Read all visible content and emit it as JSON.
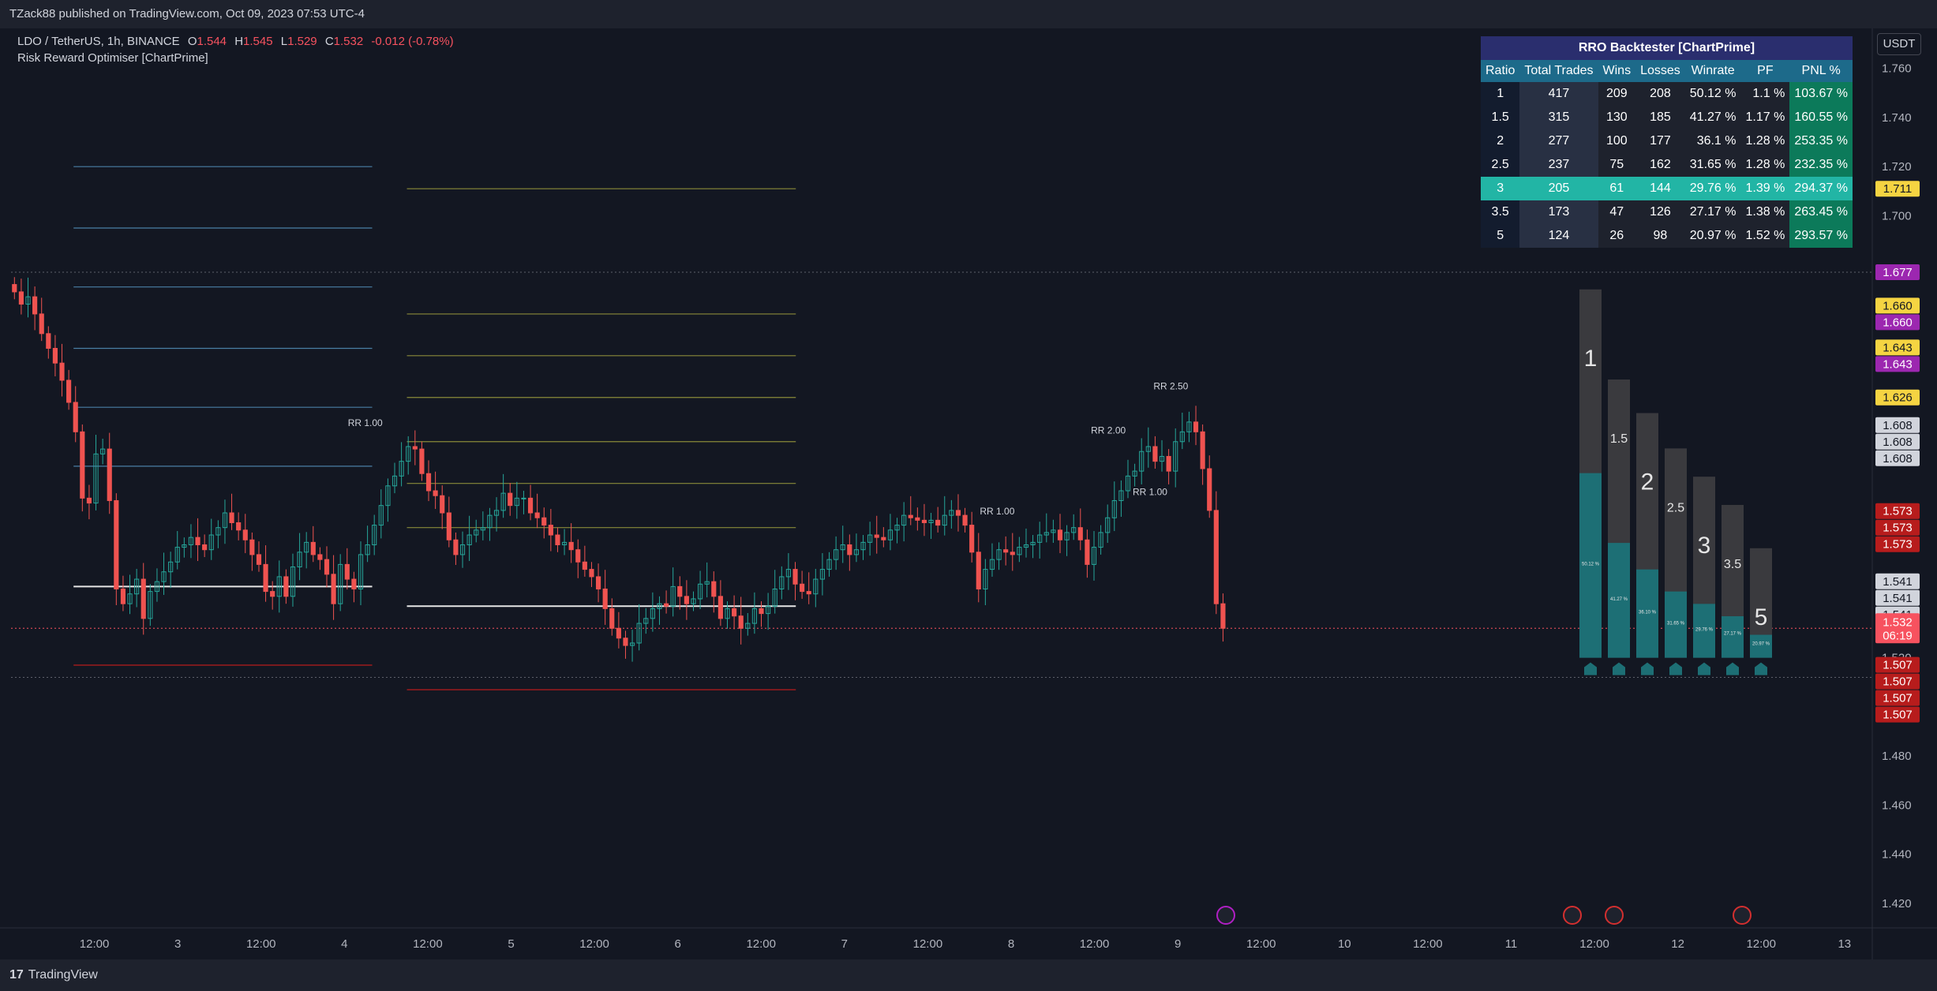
{
  "header": {
    "publish_line": "TZack88 published on TradingView.com, Oct 09, 2023 07:53 UTC-4"
  },
  "legend": {
    "symbol": "LDO / TetherUS, 1h, BINANCE",
    "o_label": "O",
    "o_value": "1.544",
    "h_label": "H",
    "h_value": "1.545",
    "l_label": "L",
    "l_value": "1.529",
    "c_label": "C",
    "c_value": "1.532",
    "change": "-0.012 (-0.78%)",
    "indicator": "Risk Reward Optimiser [ChartPrime]"
  },
  "currency_button": "USDT",
  "footer": {
    "logo_text": "TradingView"
  },
  "colors": {
    "background": "#131722",
    "bull": "#26a69a",
    "bear": "#ef5350",
    "panel": "#1e222d",
    "accent_green": "#0c7a5a",
    "accent_teal": "#22b5a5",
    "table_title": "#2a2e6e",
    "table_header": "#1d6a8a",
    "price_tag_red": "#f23645",
    "price_tag_yellow": "#f5d442",
    "price_tag_purple": "#9c27b0"
  },
  "table": {
    "title": "RRO Backtester [ChartPrime]",
    "columns": [
      "Ratio",
      "Total Trades",
      "Wins",
      "Losses",
      "Winrate",
      "PF",
      "PNL %"
    ],
    "best_row": 4,
    "rows": [
      [
        "1",
        "417",
        "209",
        "208",
        "50.12 %",
        "1.1 %",
        "103.67 %"
      ],
      [
        "1.5",
        "315",
        "130",
        "185",
        "41.27 %",
        "1.17 %",
        "160.55 %"
      ],
      [
        "2",
        "277",
        "100",
        "177",
        "36.1 %",
        "1.28 %",
        "253.35 %"
      ],
      [
        "2.5",
        "237",
        "75",
        "162",
        "31.65 %",
        "1.28 %",
        "232.35 %"
      ],
      [
        "3",
        "205",
        "61",
        "144",
        "29.76 %",
        "1.39 %",
        "294.37 %"
      ],
      [
        "3.5",
        "173",
        "47",
        "126",
        "27.17 %",
        "1.38 %",
        "263.45 %"
      ],
      [
        "5",
        "124",
        "26",
        "98",
        "20.97 %",
        "1.52 %",
        "293.57 %"
      ]
    ]
  },
  "chart_data": {
    "type": "candlestick",
    "symbol": "LDO / TetherUS",
    "interval": "1h",
    "ylim": [
      1.41,
      1.775
    ],
    "y_ticks": [
      1.42,
      1.44,
      1.46,
      1.48,
      1.5,
      1.52,
      1.54,
      1.56,
      1.58,
      1.6,
      1.62,
      1.64,
      1.66,
      1.68,
      1.7,
      1.72,
      1.74,
      1.76
    ],
    "y_tick_labels": [
      "1.420",
      "1.440",
      "1.460",
      "1.480",
      "",
      "1.520",
      "",
      "",
      "",
      "1.600",
      "",
      "",
      "",
      "",
      "1.700",
      "1.720",
      "1.740",
      "1.760"
    ],
    "x_labels": [
      "12:00",
      "3",
      "12:00",
      "4",
      "12:00",
      "5",
      "12:00",
      "6",
      "12:00",
      "7",
      "12:00",
      "8",
      "12:00",
      "9",
      "12:00",
      "10",
      "12:00",
      "11",
      "12:00",
      "12",
      "12:00",
      "13"
    ],
    "x_label_hours": [
      12,
      24,
      36,
      48,
      60,
      72,
      84,
      96,
      108,
      120,
      132,
      144,
      156,
      168,
      180,
      192,
      204,
      216,
      228,
      240,
      252,
      264
    ],
    "x_range_hours": [
      0,
      268
    ],
    "candles_start_hour": 0,
    "candles_end_hour": 175,
    "closes": [
      1.669,
      1.664,
      1.667,
      1.66,
      1.652,
      1.646,
      1.64,
      1.633,
      1.624,
      1.612,
      1.585,
      1.583,
      1.603,
      1.605,
      1.584,
      1.548,
      1.542,
      1.546,
      1.552,
      1.536,
      1.547,
      1.551,
      1.555,
      1.559,
      1.565,
      1.566,
      1.569,
      1.566,
      1.564,
      1.57,
      1.573,
      1.579,
      1.575,
      1.572,
      1.568,
      1.562,
      1.558,
      1.547,
      1.545,
      1.553,
      1.545,
      1.557,
      1.563,
      1.567,
      1.562,
      1.56,
      1.554,
      1.542,
      1.558,
      1.552,
      1.548,
      1.562,
      1.566,
      1.574,
      1.582,
      1.59,
      1.594,
      1.6,
      1.606,
      1.605,
      1.595,
      1.588,
      1.586,
      1.579,
      1.568,
      1.562,
      1.566,
      1.57,
      1.572,
      1.573,
      1.578,
      1.58,
      1.587,
      1.582,
      1.585,
      1.585,
      1.579,
      1.577,
      1.574,
      1.57,
      1.566,
      1.567,
      1.564,
      1.559,
      1.556,
      1.553,
      1.548,
      1.54,
      1.532,
      1.528,
      1.525,
      1.526,
      1.534,
      1.536,
      1.54,
      1.542,
      1.541,
      1.549,
      1.545,
      1.542,
      1.544,
      1.55,
      1.551,
      1.545,
      1.536,
      1.54,
      1.537,
      1.532,
      1.534,
      1.54,
      1.538,
      1.541,
      1.548,
      1.553,
      1.556,
      1.55,
      1.547,
      1.546,
      1.552,
      1.556,
      1.56,
      1.564,
      1.566,
      1.562,
      1.564,
      1.567,
      1.57,
      1.569,
      1.568,
      1.572,
      1.574,
      1.578,
      1.577,
      1.576,
      1.575,
      1.576,
      1.574,
      1.578,
      1.58,
      1.578,
      1.574,
      1.563,
      1.548,
      1.556,
      1.56,
      1.564,
      1.563,
      1.562,
      1.565,
      1.566,
      1.567,
      1.57,
      1.571,
      1.572,
      1.568,
      1.571,
      1.573,
      1.568,
      1.558,
      1.565,
      1.571,
      1.577,
      1.584,
      1.588,
      1.594,
      1.596,
      1.604,
      1.606,
      1.6,
      1.602,
      1.596,
      1.608,
      1.612,
      1.616,
      1.612,
      1.597,
      1.58,
      1.542,
      1.532
    ],
    "price_tags": [
      {
        "price": 1.711,
        "label": "1.711",
        "color": "#f5d442"
      },
      {
        "price": 1.677,
        "label": "1.677",
        "color": "#9c27b0"
      },
      {
        "price": 1.66,
        "label": "1.660",
        "color": "#f5d442"
      },
      {
        "price": 1.66,
        "label": "1.660",
        "color": "#9c27b0"
      },
      {
        "price": 1.643,
        "label": "1.643",
        "color": "#f5d442"
      },
      {
        "price": 1.643,
        "label": "1.643",
        "color": "#9c27b0"
      },
      {
        "price": 1.626,
        "label": "1.626",
        "color": "#f5d442"
      },
      {
        "price": 1.608,
        "label": "1.608",
        "color": "#d1d4dc"
      },
      {
        "price": 1.608,
        "label": "1.608",
        "color": "#d1d4dc"
      },
      {
        "price": 1.608,
        "label": "1.608",
        "color": "#d1d4dc"
      },
      {
        "price": 1.573,
        "label": "1.573",
        "color": "#b71c1c"
      },
      {
        "price": 1.573,
        "label": "1.573",
        "color": "#b71c1c"
      },
      {
        "price": 1.573,
        "label": "1.573",
        "color": "#b71c1c"
      },
      {
        "price": 1.541,
        "label": "1.541",
        "color": "#d1d4dc"
      },
      {
        "price": 1.541,
        "label": "1.541",
        "color": "#d1d4dc"
      },
      {
        "price": 1.541,
        "label": "1.541",
        "color": "#d1d4dc"
      },
      {
        "price": 1.541,
        "label": "1.541",
        "color": "#d1d4dc"
      },
      {
        "price": 1.532,
        "label": "1.532",
        "sub": "06:19",
        "color": "#f7525f"
      },
      {
        "price": 1.507,
        "label": "1.507",
        "color": "#b71c1c"
      },
      {
        "price": 1.507,
        "label": "1.507",
        "color": "#b71c1c"
      },
      {
        "price": 1.507,
        "label": "1.507",
        "color": "#b71c1c"
      },
      {
        "price": 1.507,
        "label": "1.507",
        "color": "#b71c1c"
      }
    ],
    "rr_annotations": [
      {
        "label": "RR 1.00",
        "hour": 51,
        "price": 1.613
      },
      {
        "label": "RR 1.00",
        "hour": 142,
        "price": 1.577
      },
      {
        "label": "RR 1.00",
        "hour": 164,
        "price": 1.585
      },
      {
        "label": "RR 2.00",
        "hour": 158,
        "price": 1.61
      },
      {
        "label": "RR 2.50",
        "hour": 167,
        "price": 1.628
      }
    ],
    "trade_lines": [
      {
        "from": 9,
        "to": 52,
        "price": 1.72,
        "color": "#4a7fa5"
      },
      {
        "from": 9,
        "to": 52,
        "price": 1.695,
        "color": "#4a7fa5"
      },
      {
        "from": 9,
        "to": 52,
        "price": 1.671,
        "color": "#4a7fa5"
      },
      {
        "from": 9,
        "to": 52,
        "price": 1.646,
        "color": "#4a7fa5"
      },
      {
        "from": 9,
        "to": 52,
        "price": 1.622,
        "color": "#4a7fa5"
      },
      {
        "from": 9,
        "to": 52,
        "price": 1.598,
        "color": "#4a7fa5"
      },
      {
        "from": 9,
        "to": 52,
        "price": 1.549,
        "color": "#e6e6e6"
      },
      {
        "from": 9,
        "to": 52,
        "price": 1.517,
        "color": "#b71c1c"
      },
      {
        "from": 57,
        "to": 113,
        "price": 1.711,
        "color": "#8a8a3a"
      },
      {
        "from": 57,
        "to": 113,
        "price": 1.66,
        "color": "#8a8a3a"
      },
      {
        "from": 57,
        "to": 113,
        "price": 1.643,
        "color": "#8a8a3a"
      },
      {
        "from": 57,
        "to": 113,
        "price": 1.626,
        "color": "#8a8a3a"
      },
      {
        "from": 57,
        "to": 113,
        "price": 1.608,
        "color": "#8a8a3a"
      },
      {
        "from": 57,
        "to": 113,
        "price": 1.591,
        "color": "#8a8a3a"
      },
      {
        "from": 57,
        "to": 113,
        "price": 1.573,
        "color": "#8a8a3a"
      },
      {
        "from": 57,
        "to": 113,
        "price": 1.541,
        "color": "#e6e6e6"
      },
      {
        "from": 57,
        "to": 113,
        "price": 1.507,
        "color": "#b71c1c"
      }
    ],
    "bars_panel": [
      {
        "ratio": "1",
        "winrate": 50.12,
        "winrate_label": "50.12 %",
        "trades": 417
      },
      {
        "ratio": "1.5",
        "winrate": 41.27,
        "winrate_label": "41.27 %",
        "trades": 315
      },
      {
        "ratio": "2",
        "winrate": 36.1,
        "winrate_label": "36.10 %",
        "trades": 277
      },
      {
        "ratio": "2.5",
        "winrate": 31.65,
        "winrate_label": "31.65 %",
        "trades": 237
      },
      {
        "ratio": "3",
        "winrate": 29.76,
        "winrate_label": "29.76 %",
        "trades": 205
      },
      {
        "ratio": "3.5",
        "winrate": 27.17,
        "winrate_label": "27.17 %",
        "trades": 173
      },
      {
        "ratio": "5",
        "winrate": 20.97,
        "winrate_label": "20.97 %",
        "trades": 124
      }
    ],
    "dashed_levels": [
      1.677,
      1.532,
      1.512
    ]
  }
}
